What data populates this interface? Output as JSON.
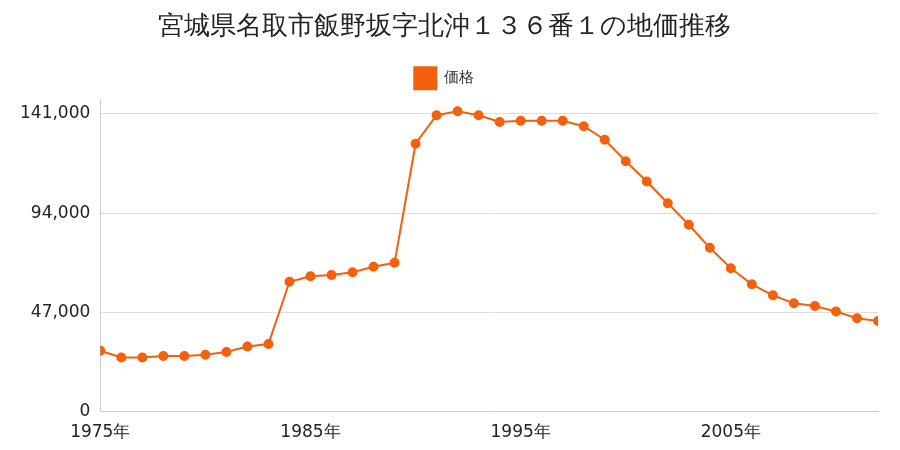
{
  "chart_data": {
    "type": "line",
    "title": "宮城県名取市飯野坂字北沖１３６番１の地価推移",
    "categories": [
      "1975年",
      null,
      null,
      null,
      null,
      null,
      null,
      null,
      null,
      null,
      "1985年",
      null,
      null,
      null,
      null,
      null,
      null,
      null,
      null,
      null,
      "1995年",
      null,
      null,
      null,
      null,
      null,
      null,
      null,
      null,
      null,
      "2005年",
      null,
      null,
      null,
      null,
      null,
      null,
      null
    ],
    "series": [
      {
        "name": "価格",
        "color": "#f4600c",
        "marker": "circle",
        "values": [
          28800,
          25600,
          25600,
          26300,
          26300,
          26900,
          28200,
          30800,
          32000,
          61500,
          64100,
          64700,
          66000,
          68600,
          70500,
          126900,
          140400,
          142300,
          140400,
          137200,
          137800,
          137800,
          137800,
          135200,
          128800,
          118600,
          109000,
          98700,
          88500,
          77600,
          67900,
          60300,
          55100,
          51300,
          50000,
          47400,
          44200,
          42900
        ]
      }
    ],
    "ylim": [
      0,
      148000
    ],
    "yticks": [
      0,
      {
        "value": 47000,
        "label": "47,000"
      },
      {
        "value": 94000,
        "label": "94,000"
      },
      {
        "value": 141000,
        "label": "141,000"
      }
    ],
    "grid": true,
    "legend": "top"
  }
}
